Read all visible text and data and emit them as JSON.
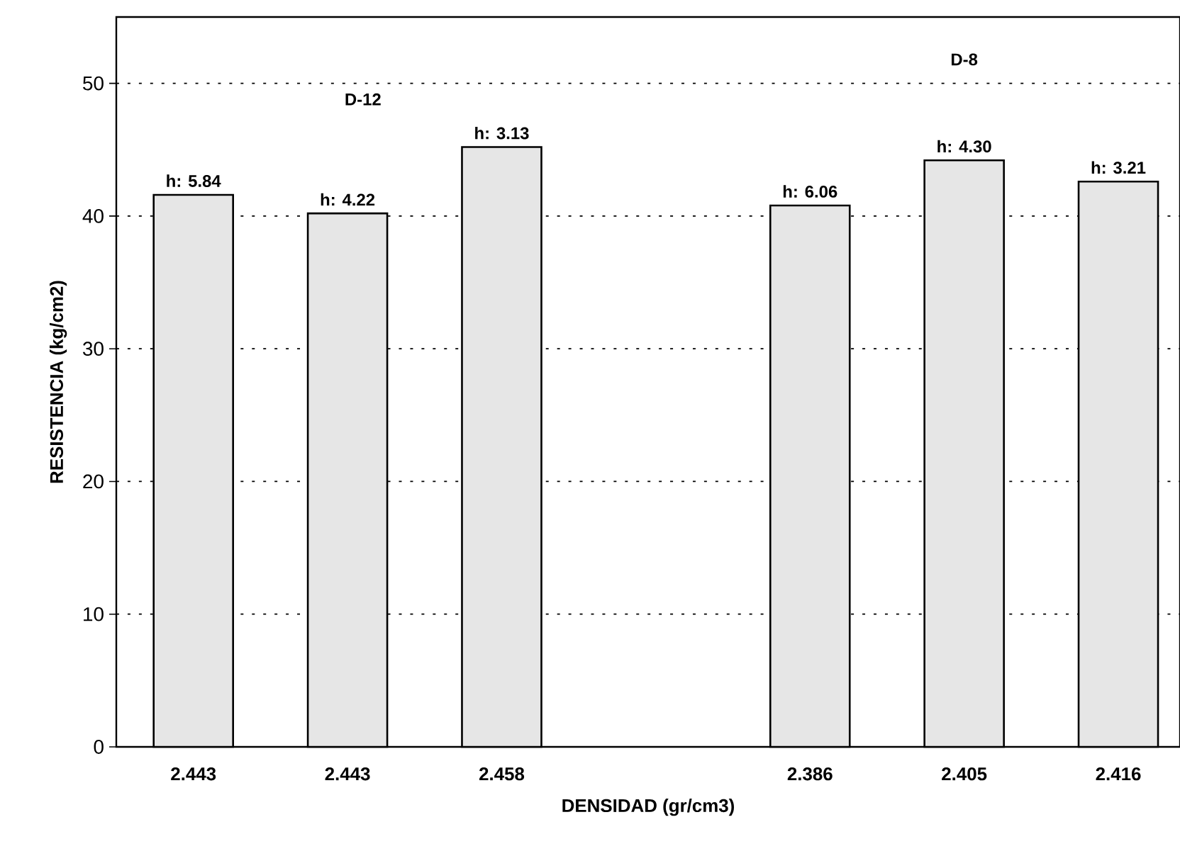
{
  "chart_data": {
    "type": "bar",
    "xlabel": "DENSIDAD (gr/cm3)",
    "ylabel": "RESISTENCIA (kg/cm2)",
    "categories": [
      "2.443",
      "2.443",
      "2.458",
      null,
      "2.386",
      "2.405",
      "2.416"
    ],
    "values": [
      41.6,
      40.2,
      45.2,
      null,
      40.8,
      44.2,
      42.6
    ],
    "color": "#e6e6e6",
    "annotations": [
      "D-12",
      "D-8",
      {
        "text": "h: 5.84",
        "x": "2.443",
        "y": 41.6
      },
      {
        "text": "h: 4.22",
        "y": 40.2
      },
      {
        "text": "h: 3.13",
        "x": "2.458",
        "y": 45.2
      },
      {
        "text": "h: 6.06",
        "x": "2.386",
        "y": 40.8
      },
      {
        "text": "h: 4.30",
        "x": "2.405",
        "y": 44.2
      },
      {
        "text": "h: 3.21",
        "x": "2.416",
        "y": 42.6
      }
    ],
    "ylim": [
      0,
      55
    ],
    "yticks": [
      0,
      10,
      20,
      30,
      40,
      50
    ],
    "grid": "y"
  }
}
